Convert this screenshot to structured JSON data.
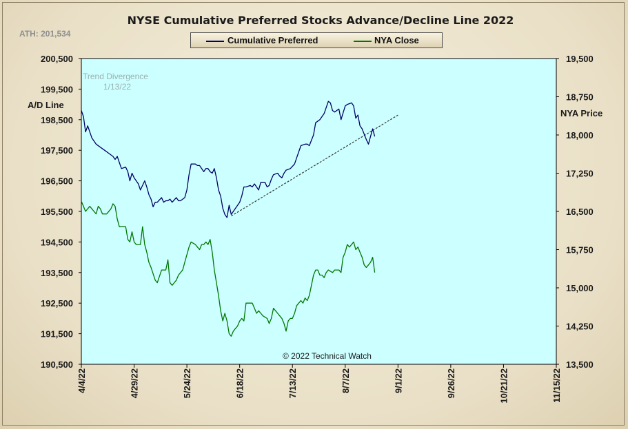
{
  "title": "NYSE Cumulative  Preferred Stocks Advance/Decline  Line  2022",
  "ath_label": "ATH: 201,534",
  "left_axis_title": "A/D Line",
  "right_axis_title": "NYA Price",
  "copyright": "© 2022 Technical Watch",
  "annotation": {
    "line1": "Trend  Divergence",
    "line2": "1/13/22"
  },
  "colors": {
    "plot_bg": "#ccffff",
    "ad_line": "#000066",
    "nya_line": "#007700",
    "trendline": "#333333"
  },
  "chart_data": {
    "type": "line",
    "title": "NYSE Cumulative  Preferred Stocks Advance/Decline  Line  2022",
    "legend_position": "top-center",
    "grid": false,
    "x_tick_labels": [
      "4/4/22",
      "4/29/22",
      "5/24/22",
      "6/18/22",
      "7/13/22",
      "8/7/22",
      "9/1/22",
      "9/26/22",
      "10/21/22",
      "11/15/22"
    ],
    "x_range_days": [
      0,
      225
    ],
    "left_axis": {
      "label": "A/D Line",
      "ylim": [
        190500,
        200500
      ],
      "ticks": [
        "190,500",
        "191,500",
        "192,500",
        "193,500",
        "194,500",
        "195,500",
        "196,500",
        "197,500",
        "198,500",
        "199,500",
        "200,500"
      ]
    },
    "right_axis": {
      "label": "NYA Price",
      "ylim": [
        13500,
        19500
      ],
      "ticks": [
        "13,500",
        "14,250",
        "15,000",
        "15,750",
        "16,500",
        "17,250",
        "18,000",
        "18,750",
        "19,500"
      ]
    },
    "series": [
      {
        "name": "Cumulative Preferred",
        "axis": "left",
        "color": "#000066",
        "points": [
          [
            0,
            198800
          ],
          [
            1,
            198600
          ],
          [
            2,
            198100
          ],
          [
            3,
            198300
          ],
          [
            5,
            197900
          ],
          [
            7,
            197700
          ],
          [
            9,
            197600
          ],
          [
            11,
            197500
          ],
          [
            13,
            197400
          ],
          [
            15,
            197300
          ],
          [
            16,
            197200
          ],
          [
            17,
            197300
          ],
          [
            18,
            197100
          ],
          [
            19,
            196900
          ],
          [
            21,
            196950
          ],
          [
            22,
            196800
          ],
          [
            23,
            196500
          ],
          [
            24,
            196750
          ],
          [
            25,
            196600
          ],
          [
            27,
            196400
          ],
          [
            28,
            196200
          ],
          [
            30,
            196500
          ],
          [
            31,
            196300
          ],
          [
            32,
            196050
          ],
          [
            33,
            195900
          ],
          [
            34,
            195650
          ],
          [
            35,
            195800
          ],
          [
            36,
            195800
          ],
          [
            38,
            195950
          ],
          [
            39,
            195800
          ],
          [
            40,
            195850
          ],
          [
            41,
            195850
          ],
          [
            42,
            195900
          ],
          [
            43,
            195800
          ],
          [
            45,
            195950
          ],
          [
            46,
            195850
          ],
          [
            47,
            195850
          ],
          [
            49,
            195950
          ],
          [
            50,
            196200
          ],
          [
            51,
            196700
          ],
          [
            52,
            197050
          ],
          [
            53,
            197050
          ],
          [
            54,
            197050
          ],
          [
            55,
            197000
          ],
          [
            56,
            197000
          ],
          [
            57,
            196900
          ],
          [
            58,
            196800
          ],
          [
            59,
            196900
          ],
          [
            60,
            196900
          ],
          [
            61,
            196800
          ],
          [
            62,
            196750
          ],
          [
            63,
            196900
          ],
          [
            64,
            196600
          ],
          [
            65,
            196200
          ],
          [
            66,
            196000
          ],
          [
            67,
            195600
          ],
          [
            68,
            195400
          ],
          [
            69,
            195300
          ],
          [
            70,
            195700
          ],
          [
            71,
            195400
          ],
          [
            72,
            195500
          ],
          [
            73,
            195600
          ],
          [
            75,
            195800
          ],
          [
            76,
            196000
          ],
          [
            77,
            196300
          ],
          [
            78,
            196300
          ],
          [
            80,
            196350
          ],
          [
            81,
            196300
          ],
          [
            82,
            196400
          ],
          [
            84,
            196200
          ],
          [
            85,
            196450
          ],
          [
            87,
            196450
          ],
          [
            88,
            196300
          ],
          [
            89,
            196350
          ],
          [
            90,
            196550
          ],
          [
            91,
            196700
          ],
          [
            93,
            196750
          ],
          [
            94,
            196650
          ],
          [
            95,
            196600
          ],
          [
            96,
            196750
          ],
          [
            97,
            196850
          ],
          [
            99,
            196900
          ],
          [
            101,
            197050
          ],
          [
            102,
            197250
          ],
          [
            104,
            197650
          ],
          [
            106,
            197700
          ],
          [
            107,
            197700
          ],
          [
            108,
            197650
          ],
          [
            110,
            198000
          ],
          [
            111,
            198400
          ],
          [
            113,
            198500
          ],
          [
            115,
            198700
          ],
          [
            117,
            199100
          ],
          [
            118,
            199050
          ],
          [
            119,
            198800
          ],
          [
            120,
            198750
          ],
          [
            121,
            198800
          ],
          [
            122,
            198850
          ],
          [
            123,
            198500
          ],
          [
            125,
            198950
          ],
          [
            126,
            199000
          ],
          [
            128,
            199050
          ],
          [
            129,
            198950
          ],
          [
            130,
            198550
          ],
          [
            131,
            198650
          ],
          [
            132,
            198300
          ],
          [
            133,
            198200
          ],
          [
            135,
            197850
          ],
          [
            136,
            197700
          ],
          [
            137,
            197950
          ],
          [
            138,
            198200
          ],
          [
            139,
            197950
          ]
        ]
      },
      {
        "name": "NYA Close",
        "axis": "right",
        "color": "#007700",
        "points": [
          [
            0,
            16700
          ],
          [
            1,
            16600
          ],
          [
            2,
            16500
          ],
          [
            4,
            16600
          ],
          [
            5,
            16550
          ],
          [
            6,
            16500
          ],
          [
            7,
            16450
          ],
          [
            8,
            16600
          ],
          [
            9,
            16550
          ],
          [
            10,
            16450
          ],
          [
            11,
            16450
          ],
          [
            12,
            16450
          ],
          [
            14,
            16550
          ],
          [
            15,
            16650
          ],
          [
            16,
            16600
          ],
          [
            17,
            16350
          ],
          [
            18,
            16200
          ],
          [
            19,
            16200
          ],
          [
            20,
            16200
          ],
          [
            21,
            16200
          ],
          [
            22,
            15950
          ],
          [
            23,
            15900
          ],
          [
            24,
            16100
          ],
          [
            25,
            15900
          ],
          [
            26,
            15850
          ],
          [
            28,
            15850
          ],
          [
            29,
            16200
          ],
          [
            30,
            15850
          ],
          [
            31,
            15700
          ],
          [
            32,
            15500
          ],
          [
            33,
            15400
          ],
          [
            35,
            15150
          ],
          [
            36,
            15100
          ],
          [
            38,
            15350
          ],
          [
            39,
            15350
          ],
          [
            40,
            15350
          ],
          [
            41,
            15550
          ],
          [
            42,
            15100
          ],
          [
            43,
            15050
          ],
          [
            45,
            15150
          ],
          [
            46,
            15250
          ],
          [
            48,
            15350
          ],
          [
            49,
            15500
          ],
          [
            51,
            15800
          ],
          [
            52,
            15900
          ],
          [
            54,
            15850
          ],
          [
            55,
            15800
          ],
          [
            56,
            15750
          ],
          [
            57,
            15850
          ],
          [
            58,
            15850
          ],
          [
            59,
            15900
          ],
          [
            60,
            15850
          ],
          [
            61,
            15950
          ],
          [
            62,
            15700
          ],
          [
            63,
            15350
          ],
          [
            64,
            15100
          ],
          [
            65,
            14850
          ],
          [
            66,
            14550
          ],
          [
            67,
            14350
          ],
          [
            68,
            14500
          ],
          [
            69,
            14350
          ],
          [
            70,
            14100
          ],
          [
            71,
            14050
          ],
          [
            72,
            14150
          ],
          [
            73,
            14200
          ],
          [
            74,
            14250
          ],
          [
            75,
            14350
          ],
          [
            76,
            14400
          ],
          [
            77,
            14350
          ],
          [
            78,
            14700
          ],
          [
            79,
            14700
          ],
          [
            81,
            14700
          ],
          [
            82,
            14600
          ],
          [
            83,
            14500
          ],
          [
            84,
            14550
          ],
          [
            85,
            14500
          ],
          [
            86,
            14450
          ],
          [
            88,
            14400
          ],
          [
            89,
            14300
          ],
          [
            90,
            14400
          ],
          [
            91,
            14600
          ],
          [
            92,
            14550
          ],
          [
            93,
            14500
          ],
          [
            94,
            14450
          ],
          [
            95,
            14400
          ],
          [
            96,
            14300
          ],
          [
            97,
            14150
          ],
          [
            98,
            14350
          ],
          [
            99,
            14400
          ],
          [
            100,
            14400
          ],
          [
            101,
            14500
          ],
          [
            102,
            14650
          ],
          [
            103,
            14700
          ],
          [
            104,
            14750
          ],
          [
            105,
            14700
          ],
          [
            106,
            14800
          ],
          [
            107,
            14750
          ],
          [
            108,
            14850
          ],
          [
            109,
            15050
          ],
          [
            110,
            15250
          ],
          [
            111,
            15350
          ],
          [
            112,
            15350
          ],
          [
            113,
            15250
          ],
          [
            114,
            15250
          ],
          [
            115,
            15200
          ],
          [
            116,
            15300
          ],
          [
            117,
            15350
          ],
          [
            119,
            15300
          ],
          [
            120,
            15350
          ],
          [
            121,
            15350
          ],
          [
            122,
            15350
          ],
          [
            123,
            15300
          ],
          [
            124,
            15600
          ],
          [
            125,
            15700
          ],
          [
            126,
            15850
          ],
          [
            127,
            15800
          ],
          [
            128,
            15850
          ],
          [
            129,
            15900
          ],
          [
            130,
            15750
          ],
          [
            131,
            15800
          ],
          [
            132,
            15700
          ],
          [
            133,
            15600
          ],
          [
            134,
            15450
          ],
          [
            135,
            15400
          ],
          [
            136,
            15450
          ],
          [
            137,
            15500
          ],
          [
            138,
            15600
          ],
          [
            139,
            15300
          ]
        ]
      }
    ],
    "trendline": {
      "style": "dashed",
      "axis": "left",
      "from": [
        71,
        195350
      ],
      "to": [
        150,
        198650
      ]
    }
  }
}
